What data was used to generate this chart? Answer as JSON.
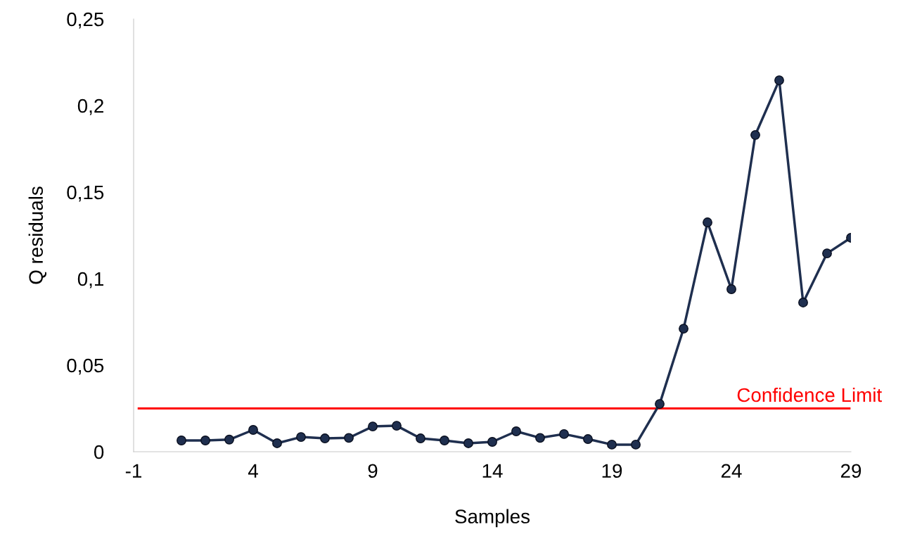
{
  "chart_data": {
    "type": "line",
    "xlabel": "Samples",
    "ylabel": "Q residuals",
    "x": [
      1,
      2,
      3,
      4,
      5,
      6,
      7,
      8,
      9,
      10,
      11,
      12,
      13,
      14,
      15,
      16,
      17,
      18,
      19,
      20,
      21,
      22,
      23,
      24,
      25,
      26,
      27,
      28,
      29
    ],
    "series": [
      {
        "color": "#1f2f4f",
        "values": [
          0.0065,
          0.0065,
          0.007,
          0.0126,
          0.0049,
          0.0085,
          0.0077,
          0.008,
          0.0146,
          0.015,
          0.0077,
          0.0065,
          0.0049,
          0.0057,
          0.0118,
          0.008,
          0.0102,
          0.0073,
          0.0041,
          0.0041,
          0.0276,
          0.0711,
          0.1325,
          0.0939,
          0.183,
          0.2146,
          0.0862,
          0.1146,
          0.1236
        ]
      }
    ],
    "xlim": [
      -1,
      29
    ],
    "xticks": [
      -1,
      4,
      9,
      14,
      19,
      24,
      29
    ],
    "ylim": [
      0,
      0.25
    ],
    "yticks": [
      0,
      {
        "value": 0.05,
        "label": "0,05"
      },
      {
        "value": 0.1,
        "label": "0,1"
      },
      {
        "value": 0.15,
        "label": "0,15"
      },
      {
        "value": 0.2,
        "label": "0,2"
      },
      {
        "value": 0.25,
        "label": "0,25"
      }
    ],
    "ref_lines": [
      {
        "axis": "y",
        "value": 0.025,
        "label": "Confidence Limit",
        "color": "#ff0000"
      }
    ],
    "marker": "circle",
    "line_style": "solid",
    "grid": false,
    "legend": false
  }
}
